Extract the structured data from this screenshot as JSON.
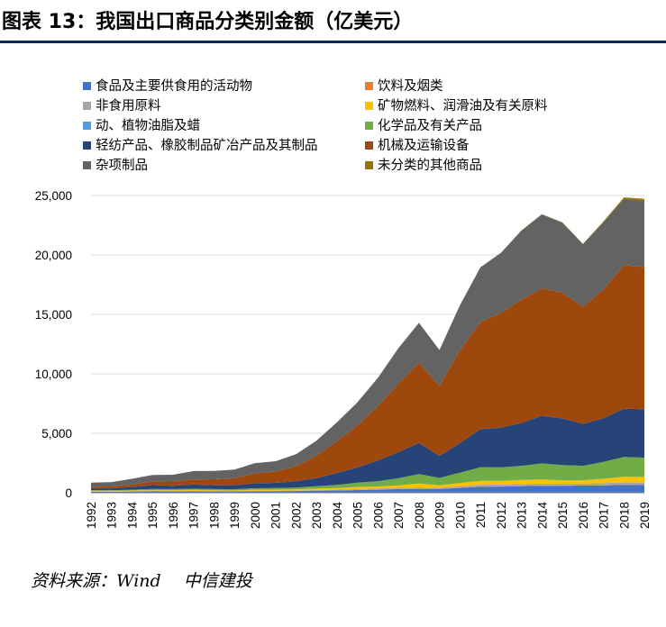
{
  "figure": {
    "title": "图表 13：我国出口商品分类别金额（亿美元）",
    "source": "资料来源：Wind　 中信建投"
  },
  "chart_data": {
    "type": "area",
    "stacked": true,
    "title": "",
    "xlabel": "",
    "ylabel": "",
    "ylim": [
      0,
      25000
    ],
    "yticks": [
      0,
      5000,
      10000,
      15000,
      20000,
      25000
    ],
    "ytick_labels": [
      "0",
      "5,000",
      "10,000",
      "15,000",
      "20,000",
      "25,000"
    ],
    "legend_position": "top",
    "x": [
      "1992",
      "1993",
      "1994",
      "1995",
      "1996",
      "1997",
      "1998",
      "1999",
      "2000",
      "2001",
      "2002",
      "2003",
      "2004",
      "2005",
      "2006",
      "2007",
      "2008",
      "2009",
      "2010",
      "2011",
      "2012",
      "2013",
      "2014",
      "2015",
      "2016",
      "2017",
      "2018",
      "2019"
    ],
    "series": [
      {
        "name": "食品及主要供食用的活动物",
        "color": "#4472c4",
        "values": [
          83,
          84,
          100,
          110,
          103,
          110,
          105,
          105,
          123,
          127,
          146,
          175,
          188,
          225,
          258,
          307,
          327,
          326,
          411,
          505,
          520,
          557,
          590,
          582,
          610,
          627,
          655,
          650
        ]
      },
      {
        "name": "饮料及烟类",
        "color": "#ed7d31",
        "values": [
          7,
          9,
          10,
          14,
          13,
          10,
          10,
          8,
          8,
          9,
          10,
          10,
          12,
          12,
          12,
          14,
          15,
          16,
          19,
          23,
          26,
          26,
          29,
          33,
          35,
          35,
          37,
          35
        ]
      },
      {
        "name": "非食用原料",
        "color": "#a5a5a5",
        "values": [
          31,
          30,
          41,
          44,
          41,
          42,
          35,
          39,
          45,
          42,
          44,
          50,
          58,
          75,
          78,
          92,
          113,
          82,
          116,
          150,
          143,
          146,
          158,
          139,
          131,
          154,
          172,
          172
        ]
      },
      {
        "name": "矿物燃料、润滑油及有关原料",
        "color": "#ffc000",
        "values": [
          47,
          41,
          41,
          54,
          59,
          70,
          52,
          47,
          78,
          84,
          85,
          111,
          145,
          176,
          177,
          200,
          317,
          204,
          267,
          323,
          310,
          337,
          345,
          279,
          268,
          353,
          467,
          467
        ]
      },
      {
        "name": "动、植物油脂及蜡",
        "color": "#5b9bd5",
        "values": [
          1,
          1,
          3,
          5,
          4,
          7,
          4,
          1,
          1,
          1,
          1,
          2,
          2,
          3,
          4,
          3,
          6,
          3,
          3,
          5,
          5,
          6,
          6,
          6,
          6,
          7,
          9,
          10
        ]
      },
      {
        "name": "化学品及有关产品",
        "color": "#70ad47",
        "values": [
          44,
          46,
          62,
          91,
          89,
          102,
          103,
          103,
          121,
          133,
          153,
          196,
          264,
          357,
          445,
          604,
          793,
          620,
          875,
          1148,
          1136,
          1196,
          1345,
          1296,
          1218,
          1413,
          1676,
          1617
        ]
      },
      {
        "name": "轻纺产品、橡胶制品矿冶产品及其制品",
        "color": "#264478",
        "values": [
          161,
          164,
          232,
          323,
          284,
          345,
          324,
          333,
          425,
          438,
          530,
          690,
          1006,
          1291,
          1748,
          2198,
          2623,
          1848,
          2491,
          3196,
          3331,
          3606,
          4004,
          3913,
          3524,
          3683,
          4049,
          4078
        ]
      },
      {
        "name": "机械及运输设备",
        "color": "#9e480e",
        "values": [
          133,
          153,
          219,
          314,
          353,
          437,
          502,
          588,
          826,
          949,
          1270,
          1878,
          2682,
          3523,
          4563,
          5770,
          6733,
          5903,
          7803,
          9017,
          9644,
          10386,
          10707,
          10591,
          9842,
          10825,
          12071,
          11952
        ]
      },
      {
        "name": "杂项制品",
        "color": "#636363",
        "values": [
          344,
          369,
          469,
          546,
          566,
          701,
          700,
          723,
          863,
          868,
          1000,
          1260,
          1564,
          1941,
          2380,
          2968,
          3360,
          2997,
          3776,
          4591,
          5050,
          5787,
          6226,
          5884,
          5275,
          5638,
          5575,
          5598
        ]
      },
      {
        "name": "未分类的其他商品",
        "color": "#997300",
        "values": [
          1,
          1,
          2,
          1,
          1,
          1,
          1,
          1,
          1,
          1,
          2,
          3,
          3,
          9,
          10,
          14,
          13,
          10,
          14,
          15,
          17,
          19,
          23,
          24,
          26,
          78,
          131,
          132
        ]
      }
    ]
  }
}
